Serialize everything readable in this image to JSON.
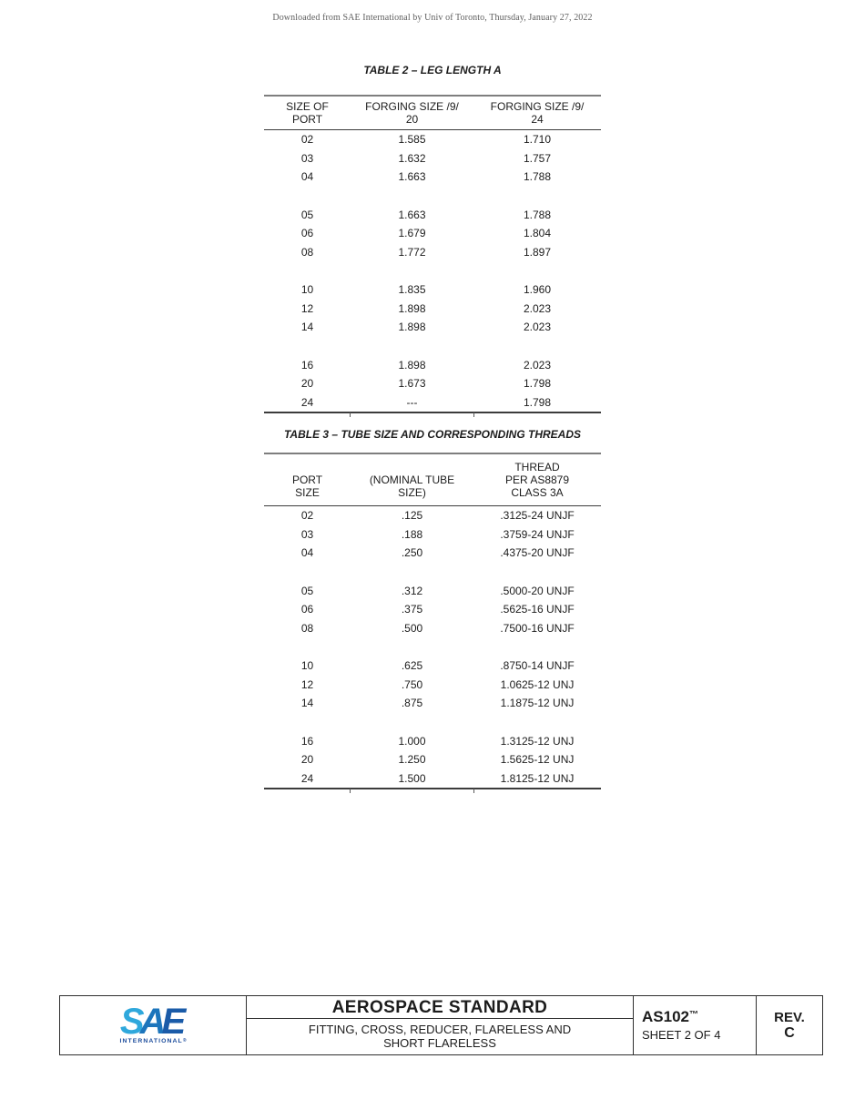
{
  "page": {
    "watermark": "Downloaded from SAE International by Univ of Toronto, Thursday, January 27, 2022"
  },
  "table2": {
    "title": "TABLE 2 – LEG LENGTH A",
    "columns": [
      [
        "SIZE OF",
        "PORT"
      ],
      [
        "FORGING SIZE /9/",
        "20"
      ],
      [
        "FORGING SIZE /9/",
        "24"
      ]
    ],
    "groups": [
      [
        [
          "02",
          "1.585",
          "1.710"
        ],
        [
          "03",
          "1.632",
          "1.757"
        ],
        [
          "04",
          "1.663",
          "1.788"
        ]
      ],
      [
        [
          "05",
          "1.663",
          "1.788"
        ],
        [
          "06",
          "1.679",
          "1.804"
        ],
        [
          "08",
          "1.772",
          "1.897"
        ]
      ],
      [
        [
          "10",
          "1.835",
          "1.960"
        ],
        [
          "12",
          "1.898",
          "2.023"
        ],
        [
          "14",
          "1.898",
          "2.023"
        ]
      ],
      [
        [
          "16",
          "1.898",
          "2.023"
        ],
        [
          "20",
          "1.673",
          "1.798"
        ],
        [
          "24",
          "---",
          "1.798"
        ]
      ]
    ]
  },
  "table3": {
    "title": "TABLE 3 – TUBE SIZE AND CORRESPONDING THREADS",
    "columns": [
      [
        "PORT",
        "SIZE"
      ],
      [
        "(NOMINAL TUBE",
        "SIZE)"
      ],
      [
        "THREAD",
        "PER AS8879",
        "CLASS 3A"
      ]
    ],
    "groups": [
      [
        [
          "02",
          ".125",
          ".3125-24 UNJF"
        ],
        [
          "03",
          ".188",
          ".3759-24 UNJF"
        ],
        [
          "04",
          ".250",
          ".4375-20 UNJF"
        ]
      ],
      [
        [
          "05",
          ".312",
          ".5000-20 UNJF"
        ],
        [
          "06",
          ".375",
          ".5625-16 UNJF"
        ],
        [
          "08",
          ".500",
          ".7500-16 UNJF"
        ]
      ],
      [
        [
          "10",
          ".625",
          ".8750-14 UNJF"
        ],
        [
          "12",
          ".750",
          "1.0625-12 UNJ"
        ],
        [
          "14",
          ".875",
          "1.1875-12 UNJ"
        ]
      ],
      [
        [
          "16",
          "1.000",
          "1.3125-12 UNJ"
        ],
        [
          "20",
          "1.250",
          "1.5625-12 UNJ"
        ],
        [
          "24",
          "1.500",
          "1.8125-12 UNJ"
        ]
      ]
    ]
  },
  "footer": {
    "logo": {
      "s": "S",
      "a": "A",
      "e": "E",
      "subtext": "INTERNATIONAL",
      "registered": "®"
    },
    "title": "AEROSPACE STANDARD",
    "subtitle_line1": "FITTING, CROSS, REDUCER, FLARELESS AND",
    "subtitle_line2": "SHORT FLARELESS",
    "doc_number": "AS102",
    "trademark": "™",
    "sheet": "SHEET 2 OF 4",
    "rev_label": "REV.",
    "rev_value": "C"
  },
  "colors": {
    "sae_s_blue": "#2FA8DC",
    "sae_a_blue": "#1C75BC",
    "sae_e_blue": "#1A5BA8",
    "sae_dark_blue": "#1B4B9B",
    "rule_gray": "#7E7E7E",
    "text_black": "#1C1C1C",
    "watermark_gray": "#606060"
  }
}
